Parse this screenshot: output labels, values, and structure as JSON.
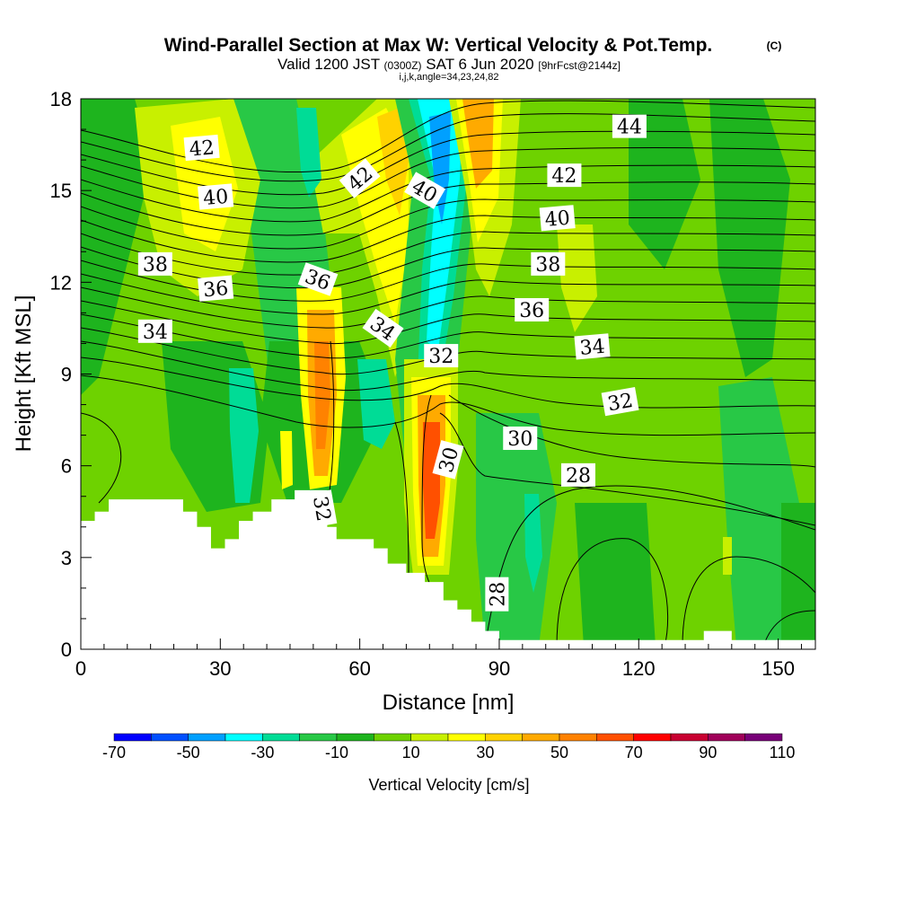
{
  "title": "Wind-Parallel Section at Max W: Vertical Velocity & Pot.Temp.",
  "copyright": "(C)",
  "subtitle": {
    "prefix": "Valid 1200 JST",
    "utc": "(0300Z)",
    "date": "SAT 6 Jun 2020",
    "forecast": "[9hrFcst@2144z]"
  },
  "indices": "i,j,k,angle=34,23,24,82",
  "chart_data": {
    "type": "heatmap",
    "xlabel": "Distance [nm]",
    "ylabel": "Height [Kft MSL]",
    "xlim": [
      0,
      158
    ],
    "ylim": [
      0,
      18
    ],
    "x_ticks": [
      0,
      30,
      60,
      90,
      120,
      150
    ],
    "y_ticks": [
      0,
      3,
      6,
      9,
      12,
      15,
      18
    ],
    "colorbar": {
      "label": "Vertical Velocity [cm/s]",
      "levels": [
        -70,
        -60,
        -50,
        -40,
        -30,
        -20,
        -10,
        0,
        10,
        20,
        30,
        40,
        50,
        60,
        70,
        80,
        90,
        100,
        110
      ],
      "tick_labels": [
        "-70",
        "-50",
        "-30",
        "-10",
        "10",
        "30",
        "50",
        "70",
        "90",
        "110"
      ],
      "colors": [
        "#0000ff",
        "#0050ff",
        "#00a0ff",
        "#00ffff",
        "#00dc96",
        "#28c846",
        "#1eb41e",
        "#6ed200",
        "#c8f000",
        "#ffff00",
        "#ffd200",
        "#ffaa00",
        "#ff8200",
        "#ff5000",
        "#ff0000",
        "#c80032",
        "#a0005a",
        "#780078"
      ]
    },
    "pot_temp_contours": [
      {
        "label": "28",
        "x": 89.5,
        "y": 1.8,
        "rot": -90
      },
      {
        "label": "28",
        "x": 107,
        "y": 5.7,
        "rot": 0
      },
      {
        "label": "30",
        "x": 79,
        "y": 6.2,
        "rot": -75
      },
      {
        "label": "30",
        "x": 94.5,
        "y": 6.9,
        "rot": 0
      },
      {
        "label": "32",
        "x": 52,
        "y": 4.6,
        "rot": 80
      },
      {
        "label": "32",
        "x": 77.5,
        "y": 9.6,
        "rot": 0
      },
      {
        "label": "32",
        "x": 116,
        "y": 8.1,
        "rot": -10
      },
      {
        "label": "34",
        "x": 16,
        "y": 10.4,
        "rot": 0
      },
      {
        "label": "34",
        "x": 65,
        "y": 10.5,
        "rot": 35
      },
      {
        "label": "34",
        "x": 110,
        "y": 9.9,
        "rot": -5
      },
      {
        "label": "36",
        "x": 29,
        "y": 11.8,
        "rot": -5
      },
      {
        "label": "36",
        "x": 51,
        "y": 12.1,
        "rot": 20
      },
      {
        "label": "36",
        "x": 97,
        "y": 11.1,
        "rot": 0
      },
      {
        "label": "38",
        "x": 16,
        "y": 12.6,
        "rot": 0
      },
      {
        "label": "38",
        "x": 100.5,
        "y": 12.6,
        "rot": 0
      },
      {
        "label": "40",
        "x": 29,
        "y": 14.8,
        "rot": -5
      },
      {
        "label": "40",
        "x": 74,
        "y": 15,
        "rot": 30
      },
      {
        "label": "40",
        "x": 102.5,
        "y": 14.1,
        "rot": -5
      },
      {
        "label": "42",
        "x": 26,
        "y": 16.4,
        "rot": -5
      },
      {
        "label": "42",
        "x": 60,
        "y": 15.4,
        "rot": -40
      },
      {
        "label": "42",
        "x": 104,
        "y": 15.5,
        "rot": 0
      },
      {
        "label": "44",
        "x": 118,
        "y": 17.1,
        "rot": 0
      }
    ],
    "terrain_heights": [
      [
        0,
        4.2
      ],
      [
        3,
        4.5
      ],
      [
        6,
        4.9
      ],
      [
        22,
        4.5
      ],
      [
        25,
        4
      ],
      [
        28,
        3.3
      ],
      [
        31,
        3.6
      ],
      [
        34,
        4.2
      ],
      [
        37,
        4.5
      ],
      [
        41,
        4.9
      ],
      [
        46,
        5.2
      ],
      [
        53,
        4
      ],
      [
        55,
        3.6
      ],
      [
        63,
        3.3
      ],
      [
        66,
        2.8
      ],
      [
        70,
        2.5
      ],
      [
        74,
        2.2
      ],
      [
        78,
        1.6
      ],
      [
        81,
        1.3
      ],
      [
        84,
        0.9
      ],
      [
        87,
        0.6
      ],
      [
        90,
        0.3
      ],
      [
        96,
        0.3
      ],
      [
        133,
        0.3
      ],
      [
        134,
        0.6
      ],
      [
        139,
        0.6
      ],
      [
        140,
        0.3
      ],
      [
        158,
        0.3
      ]
    ]
  }
}
